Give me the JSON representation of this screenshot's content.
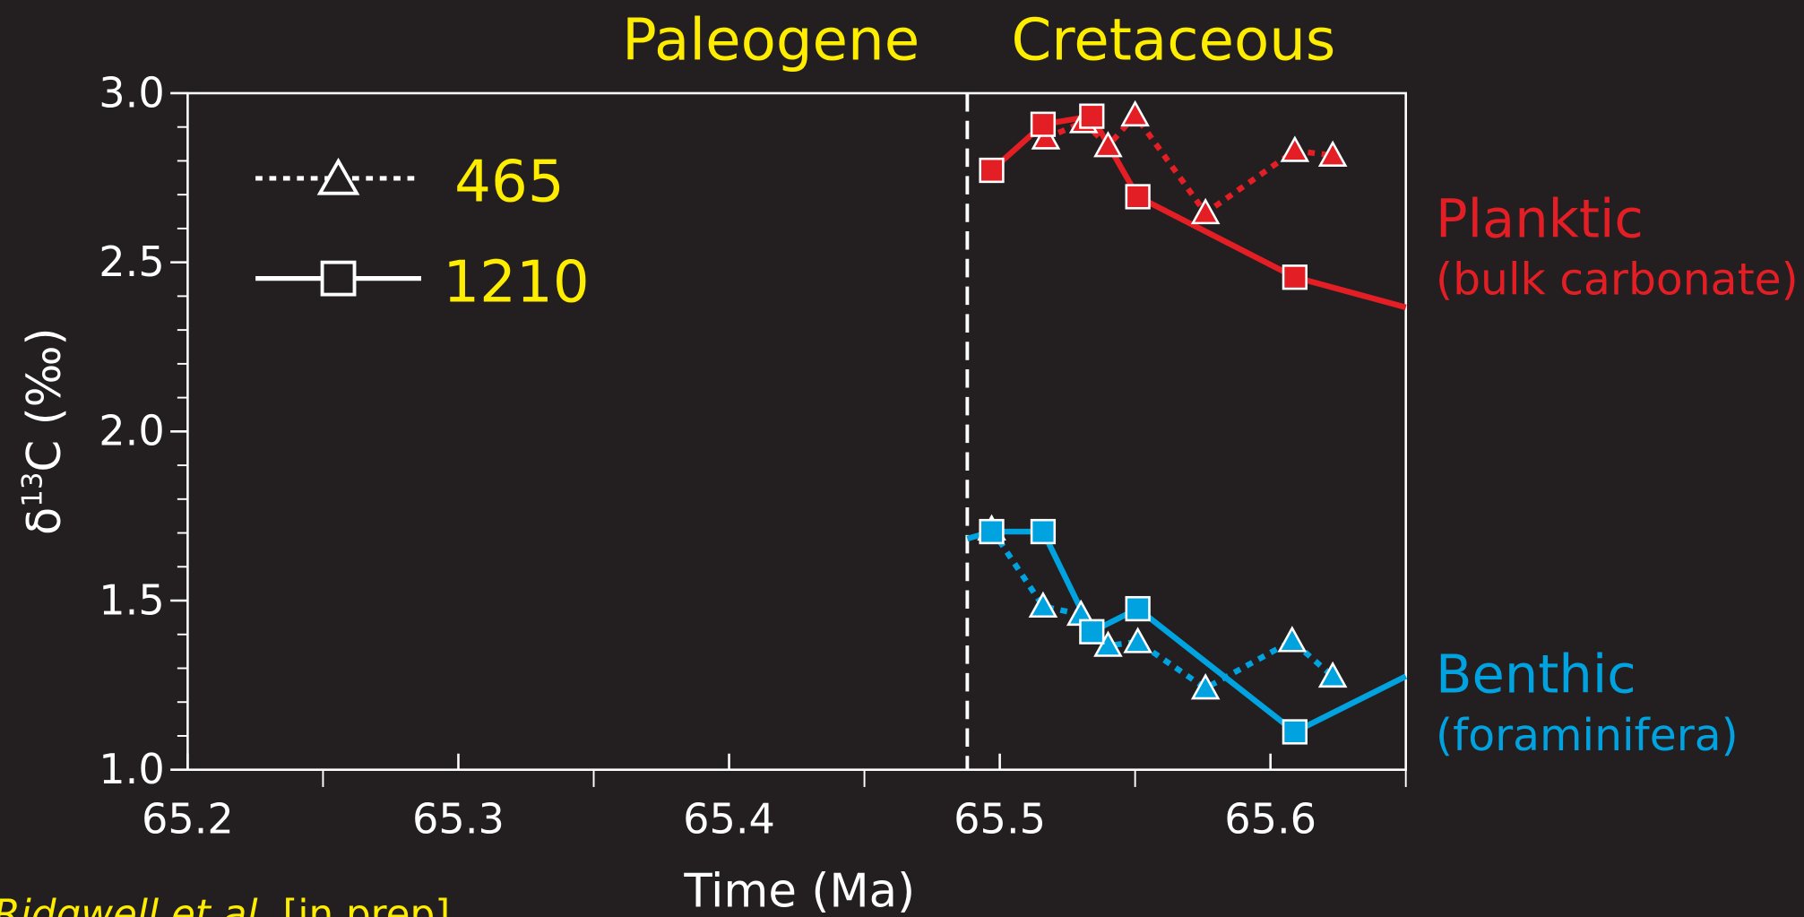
{
  "chart_data": {
    "type": "line",
    "header": [
      "Paleogene",
      "Cretaceous"
    ],
    "xlabel": "Time (Ma)",
    "ylabel": {
      "prefix": "δ",
      "sup": "13",
      "suffix": "C (‰)"
    },
    "xlim": [
      65.2,
      65.65
    ],
    "ylim": [
      1.0,
      3.0
    ],
    "xticks": [
      65.2,
      65.3,
      65.4,
      65.5,
      65.6
    ],
    "xminor": [
      65.25,
      65.35,
      65.45,
      65.55,
      65.65
    ],
    "yticks": [
      {
        "value": 1,
        "label": "1.0"
      },
      {
        "value": 1.5,
        "label": "1.5"
      },
      {
        "value": 2,
        "label": "2.0"
      },
      {
        "value": 2.5,
        "label": "2.5"
      },
      {
        "value": 3,
        "label": "3.0"
      }
    ],
    "yminor": [
      1.1,
      1.2,
      1.3,
      1.4,
      1.6,
      1.7,
      1.8,
      1.9,
      2.1,
      2.2,
      2.3,
      2.4,
      2.6,
      2.7,
      2.8,
      2.9
    ],
    "boundary_x": 65.488,
    "sites": [
      {
        "name": "465",
        "line": "dotted",
        "marker": "triangle"
      },
      {
        "name": "1210",
        "line": "solid",
        "marker": "square"
      }
    ],
    "groups": [
      {
        "name": "Planktic",
        "note": "(bulk carbonate)",
        "color": "#e31e24",
        "series": [
          {
            "x": [
              65.517,
              65.531,
              65.54,
              65.55,
              65.576,
              65.609,
              65.623
            ],
            "values": [
              2.867,
              2.915,
              2.844,
              2.935,
              2.646,
              2.83,
              2.816
            ]
          },
          {
            "x": [
              65.497,
              65.516,
              65.534,
              65.551,
              65.609,
              65.65
            ],
            "values": [
              2.772,
              2.908,
              2.932,
              2.694,
              2.456,
              2.367
            ]
          }
        ]
      },
      {
        "name": "Benthic",
        "note": "(foraminifera)",
        "color": "#00a3e0",
        "series": [
          {
            "x": [
              65.497,
              65.516,
              65.53,
              65.54,
              65.551,
              65.576,
              65.608,
              65.623
            ],
            "values": [
              1.711,
              1.483,
              1.459,
              1.367,
              1.378,
              1.241,
              1.381,
              1.276
            ]
          },
          {
            "x": [
              65.488,
              65.497,
              65.516,
              65.534,
              65.551,
              65.609,
              65.65
            ],
            "values": [
              1.683,
              1.704,
              1.704,
              1.408,
              1.476,
              1.112,
              1.276
            ]
          }
        ]
      }
    ],
    "source": {
      "authors": "Ridgwell et al.",
      "status": " [in prep]"
    }
  }
}
